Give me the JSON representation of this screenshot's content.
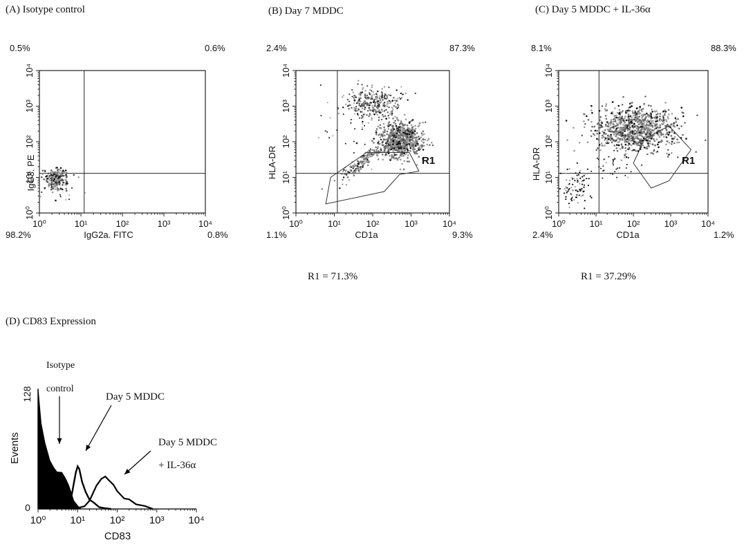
{
  "panels": [
    {
      "id": "A",
      "title": "(A)  Isotype control",
      "xlabel": "IgG2a. FITC",
      "ylabel": "IgG3. PE",
      "quadrants": {
        "ul": "0.5%",
        "ur": "0.6%",
        "ll": "98.2%",
        "lr": "0.8%"
      },
      "region_label": "",
      "result": ""
    },
    {
      "id": "B",
      "title": "(B) Day  7 MDDC",
      "xlabel": "CD1a",
      "ylabel": "HLA-DR",
      "quadrants": {
        "ul": "2.4%",
        "ur": "87.3%",
        "ll": "1.1%",
        "lr": "9.3%"
      },
      "region_label": "R1",
      "result": "R1 = 71.3%"
    },
    {
      "id": "C",
      "title": "(C) Day  5 MDDC + IL-36α",
      "xlabel": "CD1a",
      "ylabel": "HLA-DR",
      "quadrants": {
        "ul": "8.1%",
        "ur": "88.3%",
        "ll": "2.4%",
        "lr": "1.2%"
      },
      "region_label": "R1",
      "result": "R1 = 37.29%"
    }
  ],
  "histogram": {
    "title": "(D) CD83 Expression",
    "xlabel": "CD83",
    "ylabel": "Events",
    "ytop": "128",
    "ybottom": "0",
    "ann_isotype_1": "Isotype",
    "ann_isotype_2": "control",
    "ann_day5": "Day  5 MDDC",
    "ann_il36_1": "Day  5 MDDC",
    "ann_il36_2": "+ IL-36α"
  },
  "ticks": {
    "x": [
      "10⁰",
      "10¹",
      "10²",
      "10³",
      "10⁴"
    ],
    "y": [
      "10⁰",
      "10¹",
      "10²",
      "10³",
      "10⁴"
    ]
  },
  "chart_data": [
    {
      "type": "scatter",
      "title": "(A)  Isotype control",
      "xlabel": "IgG2a. FITC",
      "ylabel": "IgG3. PE",
      "xscale": "log",
      "yscale": "log",
      "xlim": [
        1,
        10000
      ],
      "ylim": [
        1,
        10000
      ],
      "quadrant_gate": {
        "x": 12,
        "y": 13
      },
      "quadrant_percentages": {
        "upper_left": 0.5,
        "upper_right": 0.6,
        "lower_left": 98.2,
        "lower_right": 0.8
      }
    },
    {
      "type": "scatter",
      "title": "(B) Day  7 MDDC",
      "xlabel": "CD1a",
      "ylabel": "HLA-DR",
      "xscale": "log",
      "yscale": "log",
      "xlim": [
        1,
        10000
      ],
      "ylim": [
        1,
        10000
      ],
      "quadrant_gate": {
        "x": 12,
        "y": 13
      },
      "quadrant_percentages": {
        "upper_left": 2.4,
        "upper_right": 87.3,
        "lower_left": 1.1,
        "lower_right": 9.3
      },
      "gates": [
        {
          "name": "R1",
          "percent": 71.3
        }
      ]
    },
    {
      "type": "scatter",
      "title": "(C) Day  5 MDDC + IL-36α",
      "xlabel": "CD1a",
      "ylabel": "HLA-DR",
      "xscale": "log",
      "yscale": "log",
      "xlim": [
        1,
        10000
      ],
      "ylim": [
        1,
        10000
      ],
      "quadrant_gate": {
        "x": 12,
        "y": 13
      },
      "quadrant_percentages": {
        "upper_left": 8.1,
        "upper_right": 88.3,
        "lower_left": 2.4,
        "lower_right": 1.2
      },
      "gates": [
        {
          "name": "R1",
          "percent": 37.29
        }
      ]
    },
    {
      "type": "area",
      "title": "(D) CD83 Expression",
      "xlabel": "CD83",
      "ylabel": "Events",
      "xscale": "log",
      "xlim": [
        1,
        10000
      ],
      "ylim": [
        0,
        128
      ],
      "series": [
        {
          "name": "Isotype control",
          "style": "filled",
          "x": [
            1,
            1.2,
            1.5,
            2,
            2.5,
            3,
            4,
            5,
            6,
            8,
            10,
            12
          ],
          "y": [
            128,
            90,
            70,
            52,
            44,
            40,
            38,
            33,
            24,
            10,
            3,
            0
          ]
        },
        {
          "name": "Day  5 MDDC",
          "style": "line",
          "x": [
            5,
            7,
            9,
            10,
            11,
            13,
            16,
            20,
            25,
            35,
            50,
            70
          ],
          "y": [
            2,
            15,
            38,
            44,
            42,
            30,
            17,
            9,
            6,
            3,
            1,
            0
          ]
        },
        {
          "name": "Day  5 MDDC + IL-36α",
          "style": "line",
          "x": [
            10,
            15,
            20,
            30,
            40,
            50,
            60,
            80,
            100,
            150,
            200,
            300,
            500,
            800
          ],
          "y": [
            1,
            3,
            10,
            25,
            33,
            35,
            30,
            25,
            20,
            12,
            9,
            5,
            2,
            0
          ]
        }
      ]
    }
  ]
}
